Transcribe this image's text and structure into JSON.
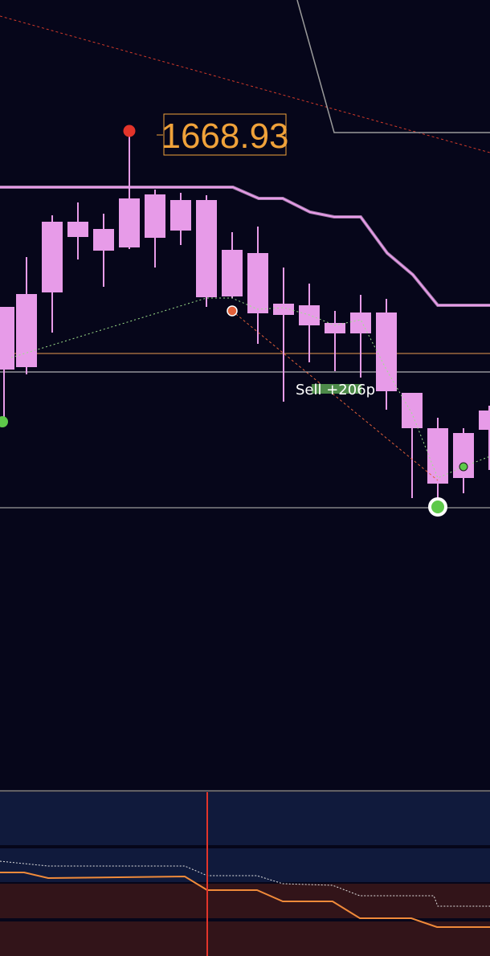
{
  "price_label": "1668.93",
  "trade_label": "Sell +206p"
}
